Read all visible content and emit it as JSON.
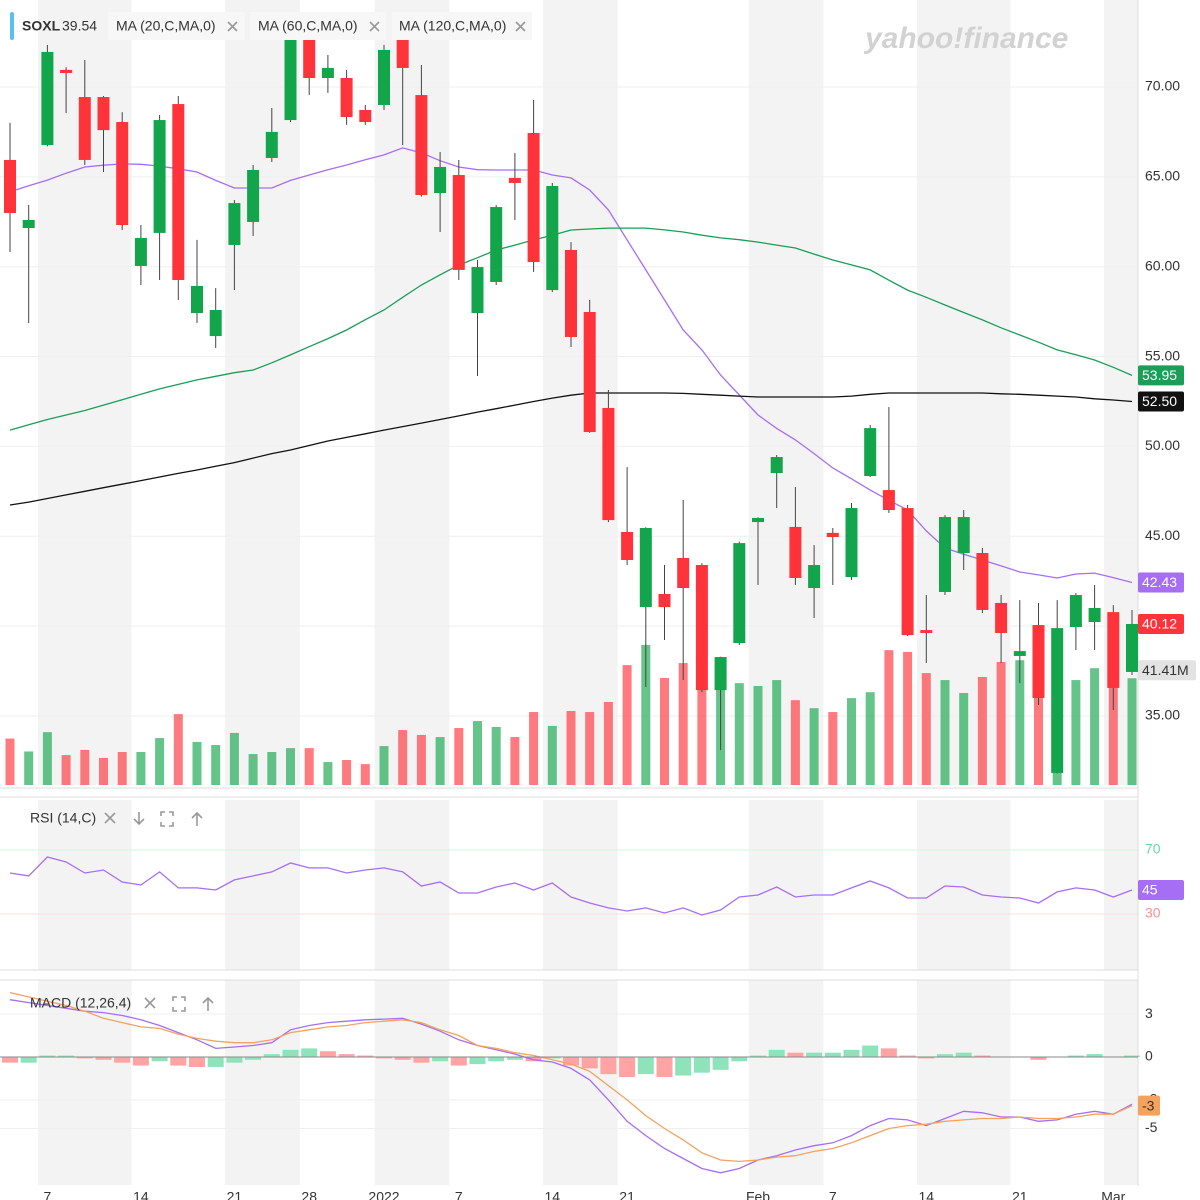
{
  "watermark": "yahoo!finance",
  "chart_data": [
    {
      "type": "candlestick",
      "name": "SOXL",
      "price": 39.54,
      "categories": [
        null,
        null,
        "7",
        null,
        null,
        null,
        null,
        "14",
        null,
        null,
        null,
        null,
        "21",
        null,
        null,
        null,
        "28",
        null,
        null,
        null,
        "2022",
        null,
        null,
        null,
        "7",
        null,
        null,
        null,
        null,
        "14",
        null,
        null,
        null,
        "21",
        null,
        null,
        null,
        null,
        null,
        null,
        "Feb",
        null,
        null,
        null,
        "7",
        null,
        null,
        null,
        null,
        "14",
        null,
        null,
        null,
        null,
        "21",
        null,
        null,
        null,
        null,
        "Mar",
        null
      ],
      "open": [
        65.94,
        62.15,
        66.77,
        70.95,
        69.44,
        69.44,
        68.05,
        60.04,
        61.88,
        69.05,
        57.42,
        56.14,
        61.21,
        62.49,
        66.05,
        68.16,
        72.62,
        70.5,
        70.5,
        68.72,
        69.0,
        72.62,
        69.55,
        64.1,
        65.1,
        57.42,
        59.15,
        64.94,
        67.44,
        58.7,
        60.93,
        57.48,
        52.14,
        45.24,
        41.06,
        41.79,
        43.79,
        43.4,
        36.44,
        39.06,
        45.79,
        48.52,
        45.52,
        42.12,
        45.19,
        42.73,
        48.35,
        47.57,
        46.57,
        39.78,
        41.9,
        44.07,
        44.07,
        41.29,
        38.34,
        40.06,
        31.83,
        39.95,
        40.23,
        40.78,
        37.45
      ],
      "high": [
        68.0,
        63.43,
        72.34,
        71.1,
        71.5,
        69.5,
        68.6,
        62.32,
        68.44,
        69.5,
        61.49,
        58.81,
        63.71,
        65.66,
        68.83,
        73.17,
        73.17,
        71.78,
        70.95,
        69.0,
        72.34,
        73.17,
        71.22,
        66.38,
        65.94,
        60.37,
        63.43,
        66.33,
        69.28,
        64.66,
        61.37,
        58.15,
        53.14,
        48.85,
        45.5,
        43.4,
        47.02,
        43.5,
        38.3,
        44.7,
        46.05,
        49.52,
        47.74,
        44.51,
        45.46,
        46.85,
        51.19,
        52.19,
        46.74,
        41.73,
        46.18,
        46.46,
        44.35,
        41.73,
        41.45,
        41.29,
        41.45,
        41.84,
        42.29,
        41.17,
        40.9
      ],
      "low": [
        60.82,
        56.87,
        66.7,
        68.55,
        65.66,
        65.27,
        62.04,
        58.98,
        59.26,
        58.15,
        56.87,
        55.48,
        58.7,
        61.71,
        65.83,
        68.05,
        69.55,
        69.67,
        67.89,
        67.89,
        68.72,
        66.77,
        63.9,
        61.93,
        59.26,
        53.92,
        58.98,
        62.6,
        59.71,
        58.59,
        55.53,
        50.75,
        45.79,
        43.4,
        36.61,
        39.23,
        37.0,
        36.33,
        33.1,
        38.95,
        42.29,
        46.57,
        42.29,
        40.45,
        42.29,
        42.57,
        48.3,
        46.3,
        39.45,
        37.95,
        41.73,
        43.12,
        40.73,
        37.95,
        36.83,
        35.61,
        31.8,
        38.67,
        38.67,
        35.33,
        37.28
      ],
      "close": [
        62.99,
        62.6,
        71.95,
        70.78,
        65.94,
        67.6,
        62.32,
        61.6,
        68.16,
        59.26,
        58.93,
        57.59,
        63.54,
        65.38,
        67.5,
        72.73,
        70.5,
        71.06,
        68.33,
        68.05,
        72.06,
        71.06,
        63.99,
        65.55,
        59.82,
        59.98,
        63.32,
        64.66,
        60.26,
        64.49,
        56.09,
        50.8,
        45.9,
        43.68,
        45.46,
        41.06,
        42.12,
        36.44,
        38.28,
        44.62,
        46.02,
        49.41,
        42.68,
        43.4,
        44.96,
        46.57,
        51.02,
        46.46,
        39.5,
        39.62,
        46.07,
        46.07,
        40.9,
        39.62,
        38.61,
        36.0,
        39.89,
        41.73,
        41.01,
        36.56,
        40.12
      ],
      "last_label": "40.12",
      "up_color": "#13a54b",
      "down_color": "#ff333a",
      "ylim": [
        31.16,
        74.84
      ],
      "yticks": [
        {
          "value": 35,
          "label": "35.00"
        },
        {
          "value": 40,
          "label": "40.00"
        },
        {
          "value": 45,
          "label": "45.00"
        },
        {
          "value": 50,
          "label": "50.00"
        },
        {
          "value": 55,
          "label": "55.00"
        },
        {
          "value": 60,
          "label": "60.00"
        },
        {
          "value": 65,
          "label": "65.00"
        },
        {
          "value": 70,
          "label": "70.00"
        }
      ],
      "grid": true,
      "overlays": [
        {
          "name": "MA (20,C,MA,0)",
          "color": "#a66ef5",
          "last_label": "42.43",
          "values": [
            64.16,
            64.5,
            64.82,
            65.2,
            65.55,
            65.65,
            65.72,
            65.7,
            65.6,
            65.45,
            65.27,
            64.8,
            64.38,
            64.38,
            64.38,
            64.8,
            65.1,
            65.4,
            65.66,
            65.95,
            66.22,
            66.61,
            66.33,
            65.9,
            65.55,
            65.4,
            65.38,
            65.38,
            65.38,
            65.1,
            64.94,
            64.27,
            63.16,
            61.49,
            59.82,
            58.15,
            56.48,
            55.37,
            53.97,
            52.86,
            51.75,
            51.0,
            50.36,
            49.6,
            48.8,
            48.2,
            47.57,
            47.0,
            46.46,
            45.3,
            44.35,
            44.0,
            43.68,
            43.35,
            43.01,
            42.85,
            42.68,
            42.9,
            42.95,
            42.7,
            42.43
          ]
        },
        {
          "name": "MA (60,C,MA,0)",
          "color": "#1a9e58",
          "last_label": "53.95",
          "values": [
            50.91,
            51.2,
            51.5,
            51.75,
            52.0,
            52.3,
            52.6,
            52.9,
            53.2,
            53.45,
            53.7,
            53.9,
            54.1,
            54.25,
            54.65,
            55.09,
            55.55,
            56.0,
            56.48,
            57.05,
            57.59,
            58.3,
            58.98,
            59.55,
            60.09,
            60.5,
            60.93,
            61.2,
            61.49,
            61.75,
            62.04,
            62.1,
            62.15,
            62.15,
            62.15,
            62.05,
            61.93,
            61.75,
            61.6,
            61.5,
            61.37,
            61.2,
            61.04,
            60.7,
            60.37,
            60.1,
            59.82,
            59.25,
            58.7,
            58.3,
            57.87,
            57.45,
            57.04,
            56.6,
            56.2,
            55.8,
            55.37,
            55.1,
            54.81,
            54.4,
            53.95
          ]
        },
        {
          "name": "MA (120,C,MA,0)",
          "color": "#111111",
          "last_label": "52.50",
          "values": [
            46.74,
            46.9,
            47.1,
            47.3,
            47.5,
            47.7,
            47.9,
            48.1,
            48.3,
            48.5,
            48.69,
            48.9,
            49.1,
            49.35,
            49.6,
            49.8,
            50.05,
            50.3,
            50.5,
            50.7,
            50.91,
            51.1,
            51.3,
            51.5,
            51.7,
            51.91,
            52.1,
            52.3,
            52.5,
            52.69,
            52.85,
            52.97,
            52.97,
            52.97,
            52.97,
            52.97,
            52.95,
            52.9,
            52.85,
            52.8,
            52.75,
            52.75,
            52.75,
            52.75,
            52.75,
            52.8,
            52.9,
            52.97,
            52.97,
            52.97,
            52.97,
            52.97,
            52.97,
            52.93,
            52.9,
            52.85,
            52.8,
            52.75,
            52.65,
            52.58,
            52.5
          ]
        }
      ],
      "volume": {
        "last_label": "41.41M",
        "values": [
          18,
          13,
          20.5,
          11.6,
          13.6,
          10.5,
          12.8,
          12.8,
          18.2,
          27.5,
          16.7,
          15.5,
          20.2,
          12,
          12.8,
          14.3,
          14.3,
          8.9,
          9.7,
          8.1,
          15.1,
          21.3,
          19.4,
          18.6,
          22.1,
          24.8,
          22.5,
          18.6,
          28.3,
          22.9,
          28.7,
          28.3,
          32.2,
          46.5,
          54.3,
          41.5,
          47.3,
          51.2,
          44.6,
          39.5,
          38.4,
          40.7,
          32.9,
          29.8,
          28.3,
          33.7,
          36,
          52.3,
          51.6,
          43.4,
          40.7,
          35.7,
          41.9,
          47.7,
          48.4,
          54.3,
          50.4,
          40.7,
          45.3,
          48.4,
          41.41
        ]
      }
    },
    {
      "type": "line",
      "title": "RSI (14,C)",
      "ylim": [
        -5,
        101.25
      ],
      "yticks": [
        70,
        30
      ],
      "series": [
        {
          "color": "#a66ef5",
          "last_label": "45",
          "values": [
            55.6,
            53.8,
            65.6,
            62.5,
            55.6,
            57.5,
            50,
            48.1,
            56.3,
            46.3,
            46.3,
            45,
            51.3,
            53.8,
            56.3,
            61.9,
            58.8,
            58.8,
            55.6,
            57.5,
            58.8,
            56.3,
            47.5,
            50,
            43.1,
            43.1,
            46.9,
            49.4,
            45,
            49.4,
            40.6,
            36.9,
            33.8,
            31.9,
            33.8,
            30.6,
            33.8,
            29.4,
            32.5,
            40.6,
            41.9,
            46.9,
            40.6,
            41.9,
            41.9,
            46.3,
            50.6,
            46.3,
            40,
            40,
            47.5,
            46.9,
            41.9,
            40.6,
            40,
            36.9,
            43.8,
            46.3,
            45,
            40.6,
            45
          ]
        }
      ]
    },
    {
      "type": "macd",
      "title": "MACD (12,26,4)",
      "ylim": [
        -8.95,
        5.38
      ],
      "yticks": [
        3,
        0,
        -3,
        -5
      ],
      "macd": {
        "color": "#a66ef5",
        "values": [
          4.0,
          3.8,
          3.6,
          3.4,
          3.2,
          3.1,
          2.9,
          2.6,
          2.2,
          1.7,
          1.2,
          0.6,
          0.7,
          0.8,
          1.0,
          1.9,
          2.2,
          2.4,
          2.5,
          2.6,
          2.65,
          2.7,
          2.3,
          1.8,
          1.2,
          0.8,
          0.5,
          0.2,
          -0.2,
          -0.35,
          -0.8,
          -1.6,
          -3.0,
          -4.5,
          -5.5,
          -6.4,
          -7.1,
          -7.8,
          -8.1,
          -7.8,
          -7.2,
          -6.9,
          -6.5,
          -6.2,
          -6.0,
          -5.5,
          -4.8,
          -4.3,
          -4.4,
          -4.8,
          -4.3,
          -3.8,
          -3.9,
          -4.2,
          -4.2,
          -4.5,
          -4.4,
          -4.0,
          -3.8,
          -4.0,
          -3.3
        ]
      },
      "signal": {
        "color": "#f5a25d",
        "last_label": "-3",
        "values": [
          4.5,
          4.2,
          3.9,
          3.6,
          3.2,
          2.7,
          2.4,
          2.1,
          2.0,
          1.6,
          1.3,
          1.1,
          1.0,
          1.0,
          1.2,
          1.7,
          1.9,
          2.1,
          2.2,
          2.4,
          2.5,
          2.6,
          2.4,
          1.9,
          1.5,
          0.8,
          0.6,
          0.3,
          0.1,
          -0.2,
          -0.5,
          -1.0,
          -2.0,
          -3.0,
          -4.1,
          -5.0,
          -5.8,
          -6.7,
          -7.2,
          -7.3,
          -7.2,
          -7.0,
          -6.9,
          -6.6,
          -6.4,
          -6.0,
          -5.5,
          -5.0,
          -4.8,
          -4.7,
          -4.5,
          -4.4,
          -4.3,
          -4.3,
          -4.2,
          -4.3,
          -4.3,
          -4.2,
          -4.0,
          -4.0,
          -3.4
        ]
      },
      "histogram": {
        "up_color": "#8fe3bb",
        "down_color": "#ffa3a3",
        "values": [
          -0.4,
          -0.4,
          0.1,
          0.1,
          -0.1,
          -0.2,
          -0.4,
          -0.6,
          -0.3,
          -0.6,
          -0.7,
          -0.7,
          -0.4,
          -0.2,
          0.2,
          0.5,
          0.6,
          0.4,
          0.2,
          0.1,
          -0.1,
          -0.2,
          -0.4,
          -0.3,
          -0.6,
          -0.5,
          -0.3,
          -0.2,
          -0.3,
          -0.1,
          -0.6,
          -0.8,
          -1.2,
          -1.4,
          -1.2,
          -1.4,
          -1.3,
          -1.1,
          -0.9,
          -0.3,
          0.1,
          0.5,
          0.3,
          0.3,
          0.3,
          0.5,
          0.8,
          0.6,
          0.1,
          -0.1,
          0.2,
          0.3,
          0.1,
          0.0,
          0.0,
          -0.2,
          0.0,
          0.1,
          0.2,
          0.0,
          0.1
        ]
      }
    }
  ]
}
